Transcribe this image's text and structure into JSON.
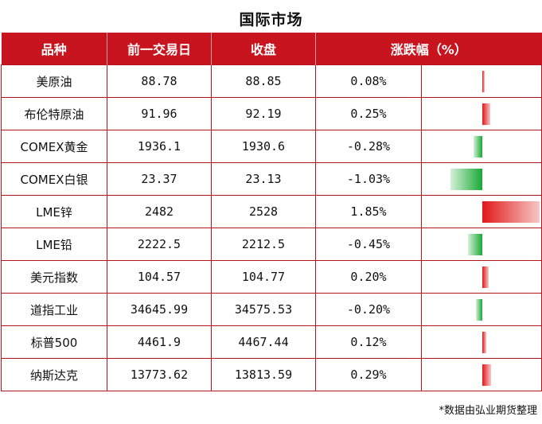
{
  "title": "国际市场",
  "headers": [
    "品种",
    "前一交易日",
    "收盘",
    "涨跌幅（%）"
  ],
  "rows": [
    {
      "name": "美原油",
      "prev": "88.78",
      "close": "88.85",
      "change": "0.08%",
      "pct": 0.08
    },
    {
      "name": "布伦特原油",
      "prev": "91.96",
      "close": "92.19",
      "change": "0.25%",
      "pct": 0.25
    },
    {
      "name": "COMEX黄金",
      "prev": "1936.1",
      "close": "1930.6",
      "change": "-0.28%",
      "pct": -0.28
    },
    {
      "name": "COMEX白银",
      "prev": "23.37",
      "close": "23.13",
      "change": "-1.03%",
      "pct": -1.03
    },
    {
      "name": "LME锌",
      "prev": "2482",
      "close": "2528",
      "change": "1.85%",
      "pct": 1.85
    },
    {
      "name": "LME铅",
      "prev": "2222.5",
      "close": "2212.5",
      "change": "-0.45%",
      "pct": -0.45
    },
    {
      "name": "美元指数",
      "prev": "104.57",
      "close": "104.77",
      "change": "0.20%",
      "pct": 0.2
    },
    {
      "name": "道指工业",
      "prev": "34645.99",
      "close": "34575.53",
      "change": "-0.20%",
      "pct": -0.2
    },
    {
      "name": "标普500",
      "prev": "4461.9",
      "close": "4467.44",
      "change": "0.12%",
      "pct": 0.12
    },
    {
      "name": "纳斯达克",
      "prev": "13773.62",
      "close": "13813.59",
      "change": "0.29%",
      "pct": 0.29
    }
  ],
  "colors": {
    "header_bg": "#c8141e",
    "positive": "#c8141e",
    "negative": "#1a9b32"
  },
  "footnote": "*数据由弘业期货整理"
}
